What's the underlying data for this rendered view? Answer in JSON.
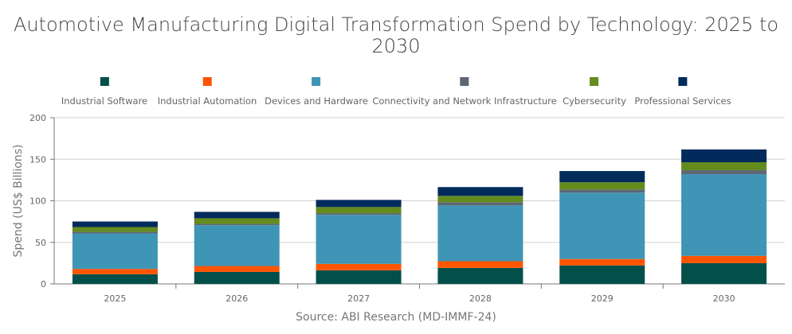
{
  "chart_data": {
    "type": "bar",
    "stacked": true,
    "title": "Automotive Manufacturing Digital Transformation Spend by Technology: 2025 to 2030",
    "xlabel": "",
    "ylabel": "Spend (US$ Billions)",
    "ylim": [
      0,
      200
    ],
    "yticks": [
      0,
      50,
      100,
      150,
      200
    ],
    "grid": true,
    "legend_position": "top",
    "categories": [
      "2025",
      "2026",
      "2027",
      "2028",
      "2029",
      "2030"
    ],
    "series": [
      {
        "name": "Industrial Software",
        "color": "#034f4a",
        "values": [
          11.6,
          14.4,
          16.4,
          19.3,
          22.2,
          25.0
        ]
      },
      {
        "name": "Industrial Automation",
        "color": "#ff5500",
        "values": [
          6.4,
          7.1,
          7.7,
          8.0,
          7.7,
          8.7
        ]
      },
      {
        "name": "Devices and Hardware",
        "color": "#3f95b5",
        "values": [
          42.7,
          49.1,
          59.0,
          67.1,
          79.9,
          98.3
        ]
      },
      {
        "name": "Connectivity and Network Infrastructure",
        "color": "#5c6774",
        "values": [
          1.9,
          1.6,
          2.0,
          3.8,
          3.8,
          4.8
        ]
      },
      {
        "name": "Cybersecurity",
        "color": "#648b1e",
        "values": [
          5.8,
          6.8,
          7.4,
          7.7,
          8.7,
          9.6
        ]
      },
      {
        "name": "Professional Services",
        "color": "#022b5c",
        "values": [
          6.7,
          7.7,
          8.6,
          10.6,
          13.5,
          15.4
        ]
      }
    ],
    "source": "Source: ABI Research (MD-IMMF-24)"
  }
}
